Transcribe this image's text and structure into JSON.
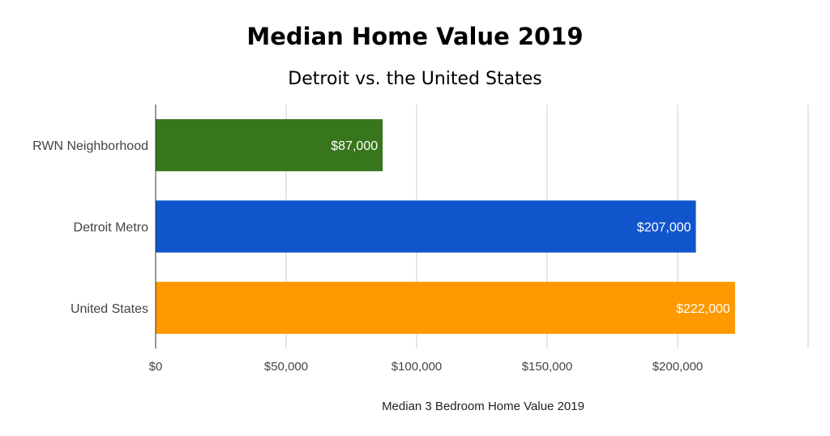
{
  "chart_data": {
    "type": "bar",
    "orientation": "horizontal",
    "title": "Median Home Value 2019",
    "subtitle": "Detroit vs. the United States",
    "xlabel": "Median 3 Bedroom Home Value 2019",
    "ylabel": "",
    "xlim": [
      0,
      250000
    ],
    "x_ticks": [
      0,
      50000,
      100000,
      150000,
      200000,
      250000
    ],
    "x_tick_labels": [
      "$0",
      "$50,000",
      "$100,000",
      "$150,000",
      "$200,000",
      ""
    ],
    "categories": [
      "RWN Neighborhood",
      "Detroit Metro",
      "United States"
    ],
    "values": [
      87000,
      207000,
      222000
    ],
    "data_labels": [
      "$87,000",
      "$207,000",
      "$222,000"
    ],
    "colors": [
      "#38761d",
      "#1155cc",
      "#ff9900"
    ],
    "grid": true,
    "legend": "none"
  }
}
